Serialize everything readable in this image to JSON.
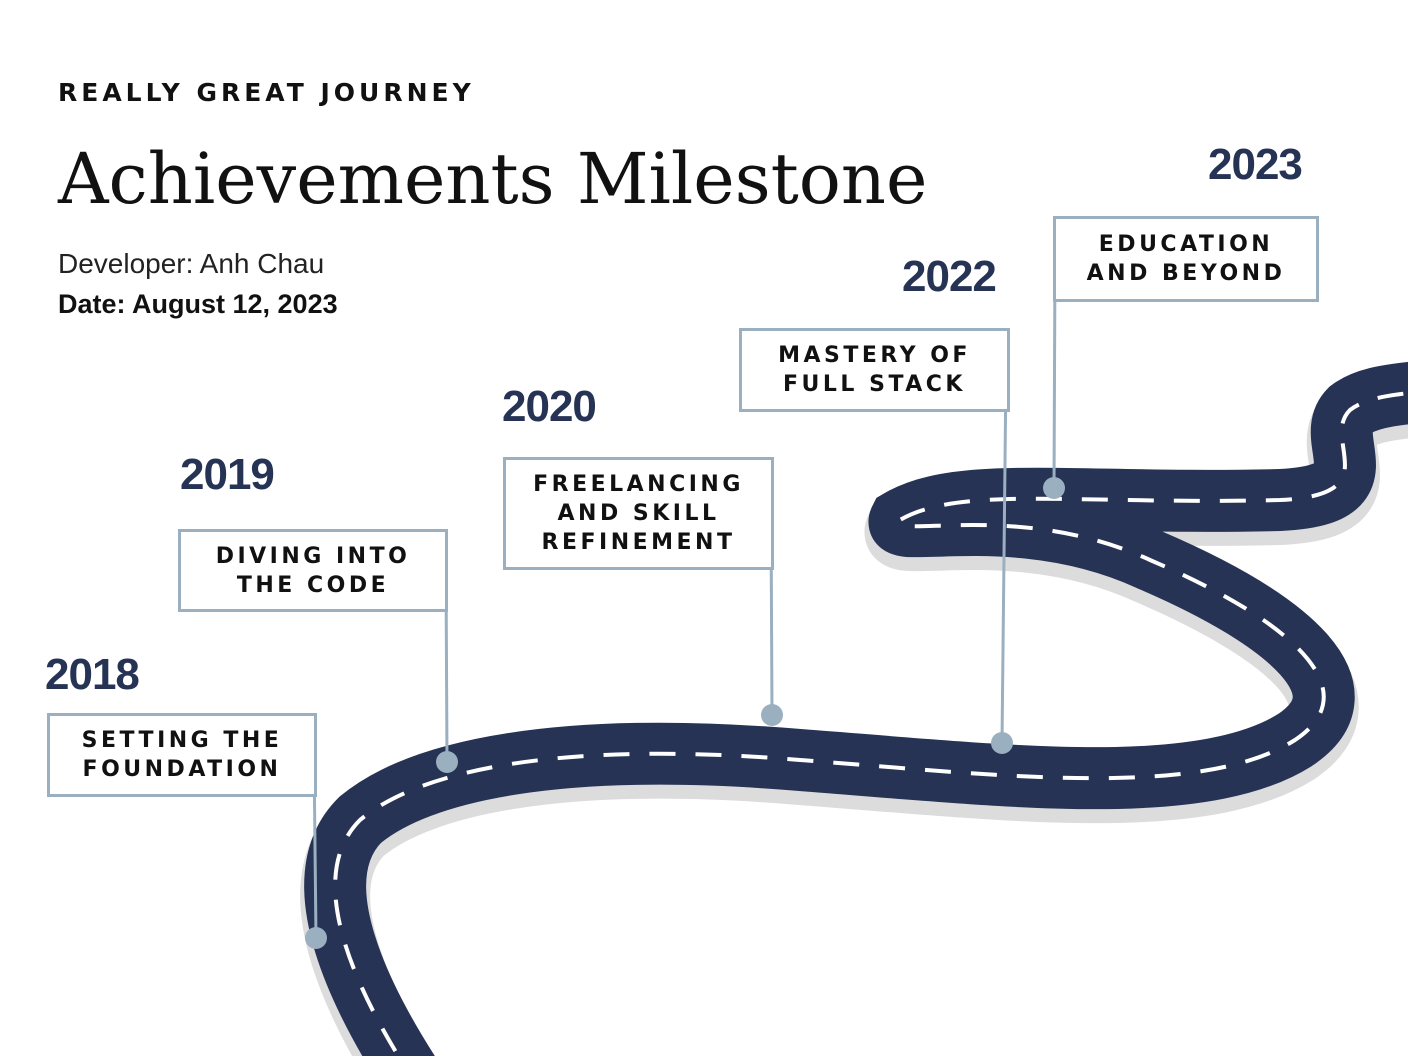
{
  "header": {
    "kicker": "REALLY GREAT JOURNEY",
    "title": "Achievements Milestone",
    "developer": "Developer: Anh Chau",
    "date": "Date: August 12, 2023"
  },
  "milestones": [
    {
      "year": "2018",
      "label": "SETTING THE FOUNDATION"
    },
    {
      "year": "2019",
      "label": "DIVING INTO THE CODE"
    },
    {
      "year": "2020",
      "label": "FREELANCING AND SKILL REFINEMENT"
    },
    {
      "year": "2022",
      "label": "MASTERY OF FULL STACK"
    },
    {
      "year": "2023",
      "label": "EDUCATION AND BEYOND"
    }
  ],
  "colors": {
    "road": "#263354",
    "road_edge": "#dcdcdc",
    "lane_marking": "#ffffff",
    "marker": "#9aafc0",
    "year_text": "#263354"
  }
}
